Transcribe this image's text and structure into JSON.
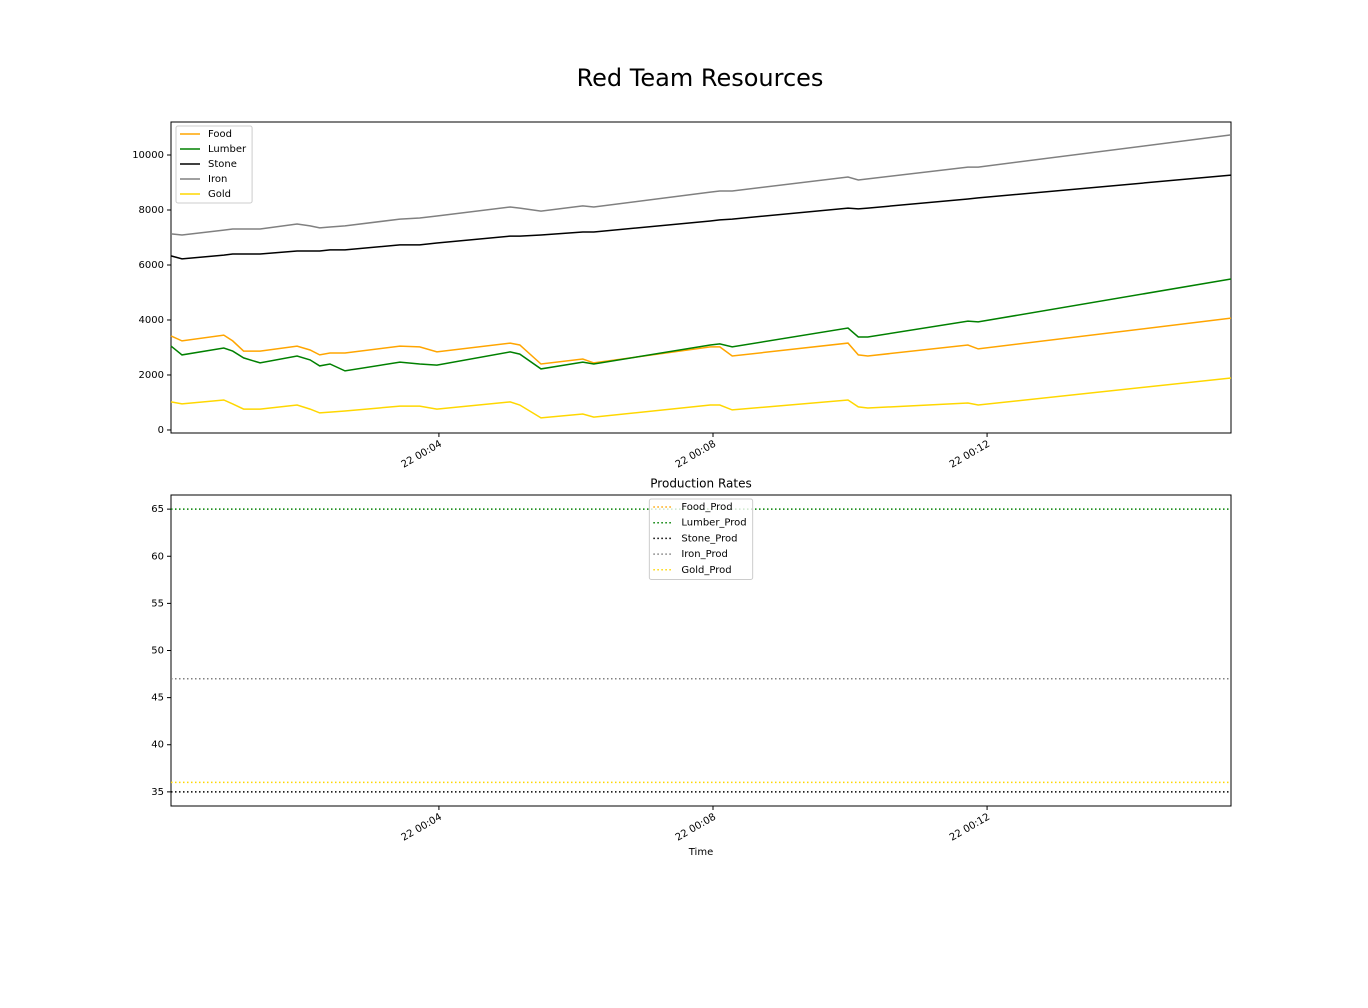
{
  "title": "Red Team Resources",
  "chart_data": [
    {
      "type": "line",
      "legend": "upper left",
      "linestyle": "solid",
      "x": [
        0.09,
        0.25,
        0.86,
        0.99,
        1.15,
        1.39,
        1.93,
        2.12,
        2.26,
        2.41,
        2.63,
        3.43,
        3.72,
        3.97,
        5.04,
        5.18,
        5.49,
        6.1,
        6.26,
        7.96,
        8.1,
        8.28,
        9.97,
        10.12,
        10.26,
        11.72,
        11.87,
        15.56
      ],
      "series": [
        {
          "name": "Food",
          "color": "#ffa500",
          "values": [
            3420,
            3240,
            3450,
            3240,
            2870,
            2870,
            3050,
            2910,
            2730,
            2800,
            2800,
            3050,
            3020,
            2840,
            3160,
            3090,
            2400,
            2580,
            2440,
            3020,
            3020,
            2690,
            3160,
            2730,
            2690,
            3090,
            2950,
            4070
          ]
        },
        {
          "name": "Lumber",
          "color": "#008000",
          "values": [
            3050,
            2730,
            2980,
            2870,
            2620,
            2440,
            2690,
            2550,
            2330,
            2400,
            2150,
            2470,
            2400,
            2360,
            2840,
            2760,
            2220,
            2470,
            2400,
            3090,
            3130,
            3020,
            3710,
            3380,
            3380,
            3960,
            3930,
            5490
          ]
        },
        {
          "name": "Stone",
          "color": "#000000",
          "values": [
            6330,
            6220,
            6360,
            6400,
            6400,
            6400,
            6510,
            6510,
            6510,
            6550,
            6550,
            6730,
            6730,
            6800,
            7050,
            7050,
            7090,
            7200,
            7200,
            7600,
            7640,
            7670,
            8070,
            8040,
            8070,
            8400,
            8440,
            9270
          ]
        },
        {
          "name": "Iron",
          "color": "#808080",
          "values": [
            7130,
            7090,
            7270,
            7310,
            7310,
            7310,
            7490,
            7420,
            7350,
            7380,
            7420,
            7670,
            7710,
            7780,
            8110,
            8070,
            7960,
            8150,
            8110,
            8650,
            8690,
            8690,
            9200,
            9090,
            9130,
            9560,
            9560,
            10730
          ]
        },
        {
          "name": "Gold",
          "color": "#ffd700",
          "values": [
            1020,
            950,
            1090,
            950,
            760,
            760,
            910,
            760,
            620,
            650,
            690,
            870,
            870,
            760,
            1020,
            910,
            440,
            580,
            470,
            910,
            910,
            730,
            1090,
            840,
            800,
            980,
            910,
            1890
          ]
        }
      ],
      "xlim": [
        0.09,
        15.56
      ],
      "xticks": [
        {
          "value": 4,
          "label": "22 00:04"
        },
        {
          "value": 8,
          "label": "22 00:08"
        },
        {
          "value": 12,
          "label": "22 00:12"
        }
      ],
      "ylim": [
        -110,
        11200
      ],
      "yticks": [
        0,
        2000,
        4000,
        6000,
        8000,
        10000
      ]
    },
    {
      "type": "line",
      "title": "Production Rates",
      "xlabel": "Time",
      "legend": "upper center",
      "linestyle": "dotted",
      "x": [
        0.09,
        15.56
      ],
      "series": [
        {
          "name": "Food_Prod",
          "color": "#ffa500",
          "values": [
            47,
            47
          ]
        },
        {
          "name": "Lumber_Prod",
          "color": "#008000",
          "values": [
            65,
            65
          ]
        },
        {
          "name": "Stone_Prod",
          "color": "#000000",
          "values": [
            35,
            35
          ]
        },
        {
          "name": "Iron_Prod",
          "color": "#808080",
          "values": [
            47,
            47
          ]
        },
        {
          "name": "Gold_Prod",
          "color": "#ffd700",
          "values": [
            36,
            36
          ]
        }
      ],
      "xlim": [
        0.09,
        15.56
      ],
      "xticks": [
        {
          "value": 4,
          "label": "22 00:04"
        },
        {
          "value": 8,
          "label": "22 00:08"
        },
        {
          "value": 12,
          "label": "22 00:12"
        }
      ],
      "ylim": [
        33.5,
        66.5
      ],
      "yticks": [
        35,
        40,
        45,
        50,
        55,
        60,
        65
      ]
    }
  ]
}
